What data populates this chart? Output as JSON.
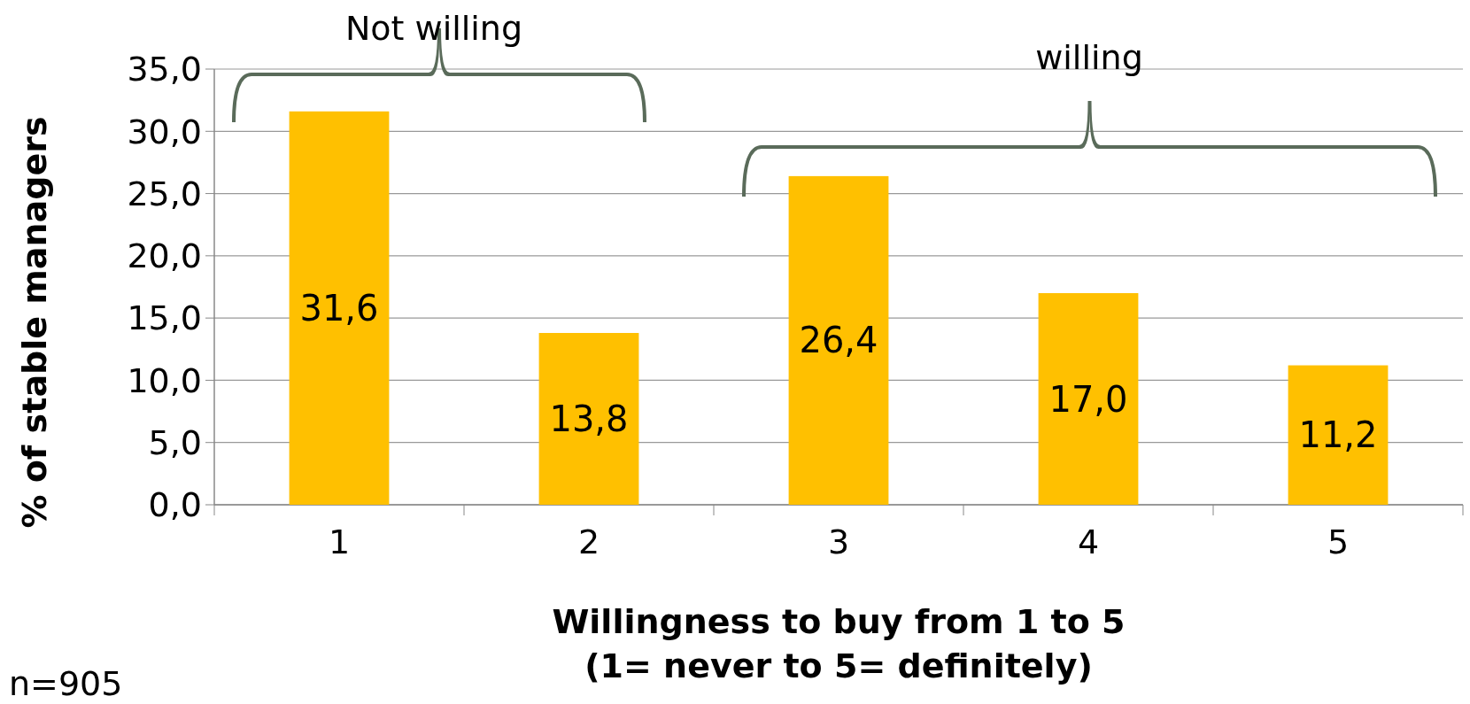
{
  "chart_data": {
    "type": "bar",
    "categories": [
      "1",
      "2",
      "3",
      "4",
      "5"
    ],
    "values": [
      31.6,
      13.8,
      26.4,
      17.0,
      11.2
    ],
    "color": "#ffc000",
    "value_labels": [
      "31,6",
      "13,8",
      "26,4",
      "17,0",
      "11,2"
    ],
    "ylim": [
      0,
      35
    ],
    "yticks": [
      {
        "value": 0,
        "label": "0,0"
      },
      {
        "value": 5,
        "label": "5,0"
      },
      {
        "value": 10,
        "label": "10,0"
      },
      {
        "value": 15,
        "label": "15,0"
      },
      {
        "value": 20,
        "label": "20,0"
      },
      {
        "value": 25,
        "label": "25,0"
      },
      {
        "value": 30,
        "label": "30,0"
      },
      {
        "value": 35,
        "label": "35,0"
      }
    ],
    "grid": "y",
    "ylabel": "% of  stable managers",
    "xlabel": "Willingness to buy from 1  to 5\n(1= never to 5= definitely)",
    "annotations": [
      "Not willing",
      "willing",
      "n=905"
    ]
  }
}
